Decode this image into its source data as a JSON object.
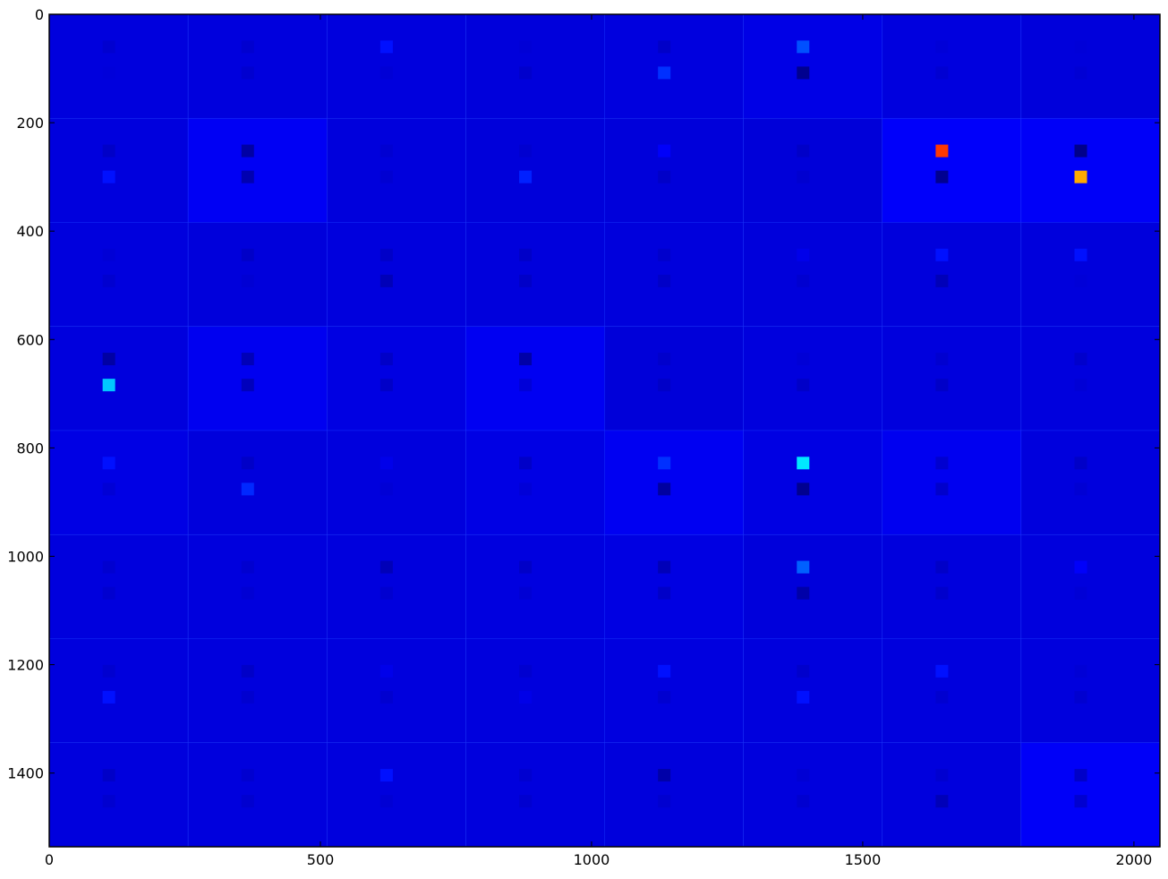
{
  "chart_data": {
    "type": "heatmap",
    "title": "",
    "xlabel": "",
    "ylabel": "",
    "xlim": [
      0,
      2048
    ],
    "ylim": [
      1536,
      0
    ],
    "x_ticks": [
      0,
      500,
      1000,
      1500,
      2000
    ],
    "y_ticks": [
      0,
      200,
      400,
      600,
      800,
      1000,
      1200,
      1400
    ],
    "x_tick_labels": [
      "0",
      "500",
      "1000",
      "1500",
      "2000"
    ],
    "y_tick_labels": [
      "0",
      "200",
      "400",
      "600",
      "800",
      "1000",
      "1200",
      "1400"
    ],
    "grid": false,
    "colormap": "jet",
    "grid_layout": {
      "columns": 8,
      "rows": 8,
      "tile_width": 256,
      "tile_height": 192
    },
    "tile_backgrounds": [
      [
        "#0000dd",
        "#0000dd",
        "#0000dd",
        "#0000db",
        "#0000de",
        "#0000e6",
        "#0000de",
        "#0000db"
      ],
      [
        "#0000dd",
        "#0000f4",
        "#0000dc",
        "#0000da",
        "#0000da",
        "#0000d9",
        "#0000fa",
        "#0000f8"
      ],
      [
        "#0000dd",
        "#0000db",
        "#0000dd",
        "#0000dc",
        "#0000dc",
        "#0000db",
        "#0000dc",
        "#0000dc"
      ],
      [
        "#0000dd",
        "#0000f0",
        "#0000e2",
        "#0000f2",
        "#0000d9",
        "#0000dd",
        "#0000dd",
        "#0000dd"
      ],
      [
        "#0000e4",
        "#0000dc",
        "#0000dd",
        "#0000e4",
        "#0000f2",
        "#0000e3",
        "#0000f0",
        "#0000dd"
      ],
      [
        "#0000dd",
        "#0000dd",
        "#0000dd",
        "#0000df",
        "#0000e2",
        "#0000db",
        "#0000dd",
        "#0000dd"
      ],
      [
        "#0000dd",
        "#0000dd",
        "#0000dd",
        "#0000dd",
        "#0000df",
        "#0000dd",
        "#0000dd",
        "#0000dd"
      ],
      [
        "#0000dd",
        "#0000dd",
        "#0000dd",
        "#0000dd",
        "#0000dc",
        "#0000dd",
        "#0000dd",
        "#0000f8"
      ]
    ],
    "feature_squares": [
      {
        "col": 0,
        "row": 0,
        "upper": "#0000d0",
        "lower": "#0000da"
      },
      {
        "col": 1,
        "row": 0,
        "upper": "#0000d0",
        "lower": "#0000d0"
      },
      {
        "col": 2,
        "row": 0,
        "upper": "#0010ff",
        "lower": "#0000d6"
      },
      {
        "col": 3,
        "row": 0,
        "upper": "#0000d6",
        "lower": "#0000cc"
      },
      {
        "col": 4,
        "row": 0,
        "upper": "#0000c8",
        "lower": "#0030ff"
      },
      {
        "col": 5,
        "row": 0,
        "upper": "#0050ff",
        "lower": "#00008f"
      },
      {
        "col": 6,
        "row": 0,
        "upper": "#0000d8",
        "lower": "#0000d2"
      },
      {
        "col": 7,
        "row": 0,
        "upper": "#0000d8",
        "lower": "#0000d4"
      },
      {
        "col": 0,
        "row": 1,
        "upper": "#0000c8",
        "lower": "#0010ff"
      },
      {
        "col": 1,
        "row": 1,
        "upper": "#0000a4",
        "lower": "#0000b0"
      },
      {
        "col": 2,
        "row": 1,
        "upper": "#0000d2",
        "lower": "#0000d2"
      },
      {
        "col": 3,
        "row": 1,
        "upper": "#0000d0",
        "lower": "#0020ff"
      },
      {
        "col": 4,
        "row": 1,
        "upper": "#0000fa",
        "lower": "#0000c8"
      },
      {
        "col": 5,
        "row": 1,
        "upper": "#0000c8",
        "lower": "#0000d0"
      },
      {
        "col": 6,
        "row": 1,
        "upper": "#ff3800",
        "lower": "#000090"
      },
      {
        "col": 7,
        "row": 1,
        "upper": "#00008a",
        "lower": "#ffaa00"
      },
      {
        "col": 0,
        "row": 2,
        "upper": "#0000d6",
        "lower": "#0000d0"
      },
      {
        "col": 1,
        "row": 2,
        "upper": "#0000c8",
        "lower": "#0000d4"
      },
      {
        "col": 2,
        "row": 2,
        "upper": "#0000c8",
        "lower": "#0000b8"
      },
      {
        "col": 3,
        "row": 2,
        "upper": "#0000c8",
        "lower": "#0000c8"
      },
      {
        "col": 4,
        "row": 2,
        "upper": "#0000cc",
        "lower": "#0000c8"
      },
      {
        "col": 5,
        "row": 2,
        "upper": "#0000ea",
        "lower": "#0000d0"
      },
      {
        "col": 6,
        "row": 2,
        "upper": "#0010ff",
        "lower": "#0000b8"
      },
      {
        "col": 7,
        "row": 2,
        "upper": "#0010ff",
        "lower": "#0000d8"
      },
      {
        "col": 0,
        "row": 3,
        "upper": "#0000a4",
        "lower": "#00c8ff"
      },
      {
        "col": 1,
        "row": 3,
        "upper": "#0000b8",
        "lower": "#0000bc"
      },
      {
        "col": 2,
        "row": 3,
        "upper": "#0000c8",
        "lower": "#0000c8"
      },
      {
        "col": 3,
        "row": 3,
        "upper": "#0000a8",
        "lower": "#0000d8"
      },
      {
        "col": 4,
        "row": 3,
        "upper": "#0000cc",
        "lower": "#0000c8"
      },
      {
        "col": 5,
        "row": 3,
        "upper": "#0000d6",
        "lower": "#0000c8"
      },
      {
        "col": 6,
        "row": 3,
        "upper": "#0000d0",
        "lower": "#0000c8"
      },
      {
        "col": 7,
        "row": 3,
        "upper": "#0000cc",
        "lower": "#0000d6"
      },
      {
        "col": 0,
        "row": 4,
        "upper": "#0010ff",
        "lower": "#0000d6"
      },
      {
        "col": 1,
        "row": 4,
        "upper": "#0000c8",
        "lower": "#0028ff"
      },
      {
        "col": 2,
        "row": 4,
        "upper": "#0000ea",
        "lower": "#0000d6"
      },
      {
        "col": 3,
        "row": 4,
        "upper": "#0000c8",
        "lower": "#0000d8"
      },
      {
        "col": 4,
        "row": 4,
        "upper": "#0030ff",
        "lower": "#0000a0"
      },
      {
        "col": 5,
        "row": 4,
        "upper": "#00e8ff",
        "lower": "#000090"
      },
      {
        "col": 6,
        "row": 4,
        "upper": "#0000d0",
        "lower": "#0000cc"
      },
      {
        "col": 7,
        "row": 4,
        "upper": "#0000c8",
        "lower": "#0000d4"
      },
      {
        "col": 0,
        "row": 5,
        "upper": "#0000d0",
        "lower": "#0000d0"
      },
      {
        "col": 1,
        "row": 5,
        "upper": "#0000d0",
        "lower": "#0000d4"
      },
      {
        "col": 2,
        "row": 5,
        "upper": "#0000b8",
        "lower": "#0000d0"
      },
      {
        "col": 3,
        "row": 5,
        "upper": "#0000c8",
        "lower": "#0000d4"
      },
      {
        "col": 4,
        "row": 5,
        "upper": "#0000b8",
        "lower": "#0000c8"
      },
      {
        "col": 5,
        "row": 5,
        "upper": "#0060ff",
        "lower": "#0000a8"
      },
      {
        "col": 6,
        "row": 5,
        "upper": "#0000c8",
        "lower": "#0000cc"
      },
      {
        "col": 7,
        "row": 5,
        "upper": "#0000fa",
        "lower": "#0000d6"
      },
      {
        "col": 0,
        "row": 6,
        "upper": "#0000d0",
        "lower": "#0010ff"
      },
      {
        "col": 1,
        "row": 6,
        "upper": "#0000c8",
        "lower": "#0000d0"
      },
      {
        "col": 2,
        "row": 6,
        "upper": "#0000ea",
        "lower": "#0000d0"
      },
      {
        "col": 3,
        "row": 6,
        "upper": "#0000d0",
        "lower": "#0000e8"
      },
      {
        "col": 4,
        "row": 6,
        "upper": "#0010ff",
        "lower": "#0000d0"
      },
      {
        "col": 5,
        "row": 6,
        "upper": "#0000cc",
        "lower": "#0010ff"
      },
      {
        "col": 6,
        "row": 6,
        "upper": "#0010ff",
        "lower": "#0000d0"
      },
      {
        "col": 7,
        "row": 6,
        "upper": "#0000d6",
        "lower": "#0000d0"
      },
      {
        "col": 0,
        "row": 7,
        "upper": "#0000c8",
        "lower": "#0000d0"
      },
      {
        "col": 1,
        "row": 7,
        "upper": "#0000d0",
        "lower": "#0000d0"
      },
      {
        "col": 2,
        "row": 7,
        "upper": "#0010ff",
        "lower": "#0000d4"
      },
      {
        "col": 3,
        "row": 7,
        "upper": "#0000d0",
        "lower": "#0000d0"
      },
      {
        "col": 4,
        "row": 7,
        "upper": "#0000a8",
        "lower": "#0000d0"
      },
      {
        "col": 5,
        "row": 7,
        "upper": "#0000d4",
        "lower": "#0000d0"
      },
      {
        "col": 6,
        "row": 7,
        "upper": "#0000d0",
        "lower": "#0000b8"
      },
      {
        "col": 7,
        "row": 7,
        "upper": "#0000c8",
        "lower": "#0000d0"
      }
    ]
  }
}
